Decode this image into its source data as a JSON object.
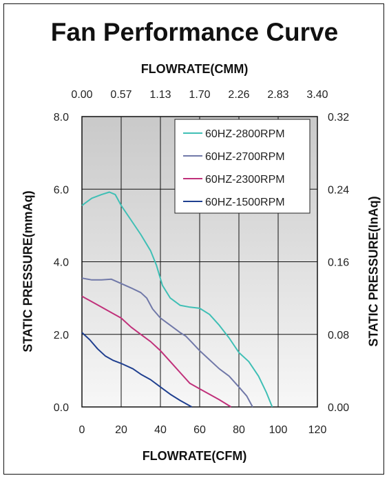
{
  "chart_data": {
    "type": "line",
    "title": "Fan Performance Curve",
    "xlabel": "FLOWRATE(CFM)",
    "x2label": "FLOWRATE(CMM)",
    "ylabel": "STATIC PRESSURE(mmAq)",
    "y2label": "STATIC PRESSURE(InAq)",
    "xlim": [
      0,
      120
    ],
    "ylim": [
      0,
      8.0
    ],
    "x_ticks": [
      "0",
      "20",
      "40",
      "60",
      "80",
      "100",
      "120"
    ],
    "x2_ticks": [
      "0.00",
      "0.57",
      "1.13",
      "1.70",
      "2.26",
      "2.83",
      "3.40"
    ],
    "y_ticks": [
      "0.0",
      "2.0",
      "4.0",
      "6.0",
      "8.0"
    ],
    "y2_ticks": [
      "0.00",
      "0.08",
      "0.16",
      "0.24",
      "0.32"
    ],
    "grid": true,
    "legend_position": "top-right",
    "series": [
      {
        "name": "60HZ-2800RPM",
        "color": "#3fbfb5",
        "points": [
          [
            0,
            5.55
          ],
          [
            5,
            5.75
          ],
          [
            10,
            5.85
          ],
          [
            14,
            5.92
          ],
          [
            17,
            5.85
          ],
          [
            20,
            5.55
          ],
          [
            25,
            5.15
          ],
          [
            30,
            4.75
          ],
          [
            35,
            4.3
          ],
          [
            38,
            3.9
          ],
          [
            41,
            3.35
          ],
          [
            45,
            3.0
          ],
          [
            50,
            2.8
          ],
          [
            55,
            2.75
          ],
          [
            60,
            2.72
          ],
          [
            65,
            2.55
          ],
          [
            70,
            2.25
          ],
          [
            75,
            1.9
          ],
          [
            80,
            1.5
          ],
          [
            85,
            1.25
          ],
          [
            90,
            0.85
          ],
          [
            94,
            0.4
          ],
          [
            97,
            0.0
          ]
        ]
      },
      {
        "name": "60HZ-2700RPM",
        "color": "#7078a8",
        "points": [
          [
            0,
            3.55
          ],
          [
            5,
            3.5
          ],
          [
            10,
            3.5
          ],
          [
            15,
            3.52
          ],
          [
            20,
            3.4
          ],
          [
            25,
            3.28
          ],
          [
            30,
            3.15
          ],
          [
            33,
            3.0
          ],
          [
            36,
            2.7
          ],
          [
            40,
            2.45
          ],
          [
            45,
            2.25
          ],
          [
            50,
            2.05
          ],
          [
            53,
            1.95
          ],
          [
            56,
            1.78
          ],
          [
            60,
            1.55
          ],
          [
            65,
            1.3
          ],
          [
            70,
            1.05
          ],
          [
            75,
            0.85
          ],
          [
            80,
            0.55
          ],
          [
            84,
            0.3
          ],
          [
            87,
            0.0
          ]
        ]
      },
      {
        "name": "60HZ-2300RPM",
        "color": "#c0307a",
        "points": [
          [
            0,
            3.05
          ],
          [
            5,
            2.9
          ],
          [
            10,
            2.75
          ],
          [
            15,
            2.6
          ],
          [
            20,
            2.45
          ],
          [
            25,
            2.2
          ],
          [
            30,
            2.0
          ],
          [
            35,
            1.8
          ],
          [
            40,
            1.55
          ],
          [
            45,
            1.25
          ],
          [
            50,
            0.95
          ],
          [
            55,
            0.65
          ],
          [
            60,
            0.5
          ],
          [
            65,
            0.35
          ],
          [
            70,
            0.2
          ],
          [
            76,
            0.0
          ]
        ]
      },
      {
        "name": "60HZ-1500RPM",
        "color": "#1f3f8f",
        "points": [
          [
            0,
            2.05
          ],
          [
            4,
            1.85
          ],
          [
            8,
            1.6
          ],
          [
            12,
            1.4
          ],
          [
            16,
            1.28
          ],
          [
            20,
            1.2
          ],
          [
            26,
            1.05
          ],
          [
            30,
            0.9
          ],
          [
            35,
            0.75
          ],
          [
            40,
            0.55
          ],
          [
            45,
            0.35
          ],
          [
            50,
            0.18
          ],
          [
            56,
            0.0
          ]
        ]
      }
    ]
  }
}
